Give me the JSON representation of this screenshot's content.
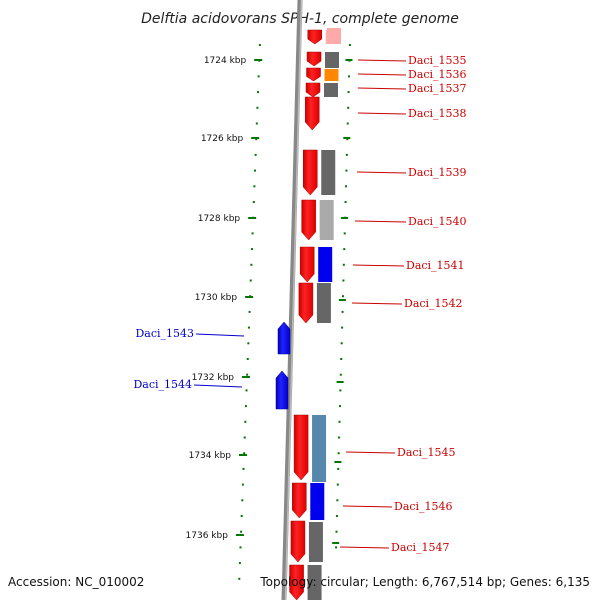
{
  "title": "Delftia acidovorans SPH-1, complete genome",
  "footer": {
    "accession": "Accession: NC_010002",
    "topology": "Topology: circular; Length: 6,767,514 bp; Genes: 6,135"
  },
  "ticks": [
    {
      "label": "1724 kbp"
    },
    {
      "label": "1726 kbp"
    },
    {
      "label": "1728 kbp"
    },
    {
      "label": "1730 kbp"
    },
    {
      "label": "1732 kbp"
    },
    {
      "label": "1734 kbp"
    },
    {
      "label": "1736 kbp"
    }
  ],
  "genes": [
    {
      "id": "Daci_1535",
      "strand": "forward",
      "color": "#ff0000"
    },
    {
      "id": "Daci_1536",
      "strand": "forward",
      "color": "#ff0000"
    },
    {
      "id": "Daci_1537",
      "strand": "forward",
      "color": "#ff0000"
    },
    {
      "id": "Daci_1538",
      "strand": "forward",
      "color": "#ff0000"
    },
    {
      "id": "Daci_1539",
      "strand": "forward",
      "color": "#ff0000"
    },
    {
      "id": "Daci_1540",
      "strand": "forward",
      "color": "#ff0000"
    },
    {
      "id": "Daci_1541",
      "strand": "forward",
      "color": "#ff0000"
    },
    {
      "id": "Daci_1542",
      "strand": "forward",
      "color": "#ff0000"
    },
    {
      "id": "Daci_1543",
      "strand": "reverse",
      "color": "#0000ff"
    },
    {
      "id": "Daci_1544",
      "strand": "reverse",
      "color": "#0000ff"
    },
    {
      "id": "Daci_1545",
      "strand": "forward",
      "color": "#ff0000"
    },
    {
      "id": "Daci_1546",
      "strand": "forward",
      "color": "#ff0000"
    },
    {
      "id": "Daci_1547",
      "strand": "forward",
      "color": "#ff0000"
    }
  ],
  "colors": {
    "forward_label": "#cc0000",
    "reverse_label": "#0000cc",
    "tick": "#007700",
    "backbone": "#888888",
    "cog_gray": "#666666",
    "cog_light": "#aaaaaa",
    "cog_orange": "#ff8800",
    "cog_blue": "#0000ee",
    "cog_steel": "#5588aa",
    "cog_pink": "#ffaaaa"
  }
}
